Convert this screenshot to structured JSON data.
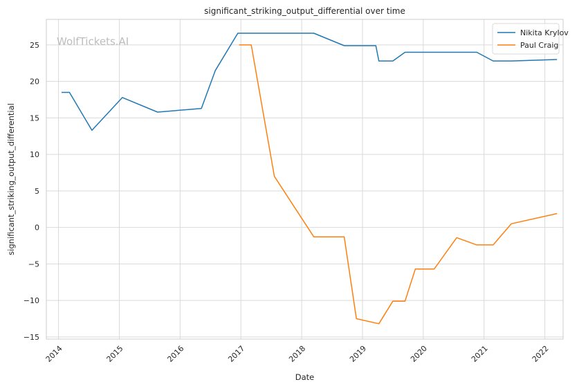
{
  "chart_data": {
    "type": "line",
    "title": "significant_striking_output_differential over time",
    "xlabel": "Date",
    "ylabel": "significant_striking_output_differential",
    "watermark": "WolfTickets.AI",
    "xlim": [
      2013.8,
      2022.3
    ],
    "ylim": [
      -15.3,
      28.5
    ],
    "x_ticks": [
      2014,
      2015,
      2016,
      2017,
      2018,
      2019,
      2020,
      2021,
      2022
    ],
    "y_ticks": [
      -15,
      -10,
      -5,
      0,
      5,
      10,
      15,
      20,
      25
    ],
    "grid": true,
    "legend_position": "top-right",
    "series": [
      {
        "name": "Nikita Krylov",
        "color": "#1f77b4",
        "points": [
          [
            2014.05,
            18.5
          ],
          [
            2014.18,
            18.5
          ],
          [
            2014.55,
            13.3
          ],
          [
            2015.05,
            17.8
          ],
          [
            2015.63,
            15.8
          ],
          [
            2016.35,
            16.3
          ],
          [
            2016.58,
            21.5
          ],
          [
            2016.95,
            26.6
          ],
          [
            2018.2,
            26.6
          ],
          [
            2018.7,
            24.9
          ],
          [
            2019.22,
            24.9
          ],
          [
            2019.27,
            22.8
          ],
          [
            2019.5,
            22.8
          ],
          [
            2019.7,
            24.0
          ],
          [
            2020.88,
            24.0
          ],
          [
            2021.15,
            22.8
          ],
          [
            2021.45,
            22.8
          ],
          [
            2022.2,
            23.0
          ]
        ]
      },
      {
        "name": "Paul Craig",
        "color": "#ff7f0e",
        "points": [
          [
            2016.97,
            25.0
          ],
          [
            2017.17,
            25.0
          ],
          [
            2017.55,
            7.0
          ],
          [
            2018.2,
            -1.3
          ],
          [
            2018.7,
            -1.3
          ],
          [
            2018.9,
            -12.5
          ],
          [
            2019.27,
            -13.2
          ],
          [
            2019.5,
            -10.1
          ],
          [
            2019.7,
            -10.1
          ],
          [
            2019.87,
            -5.7
          ],
          [
            2020.18,
            -5.7
          ],
          [
            2020.55,
            -1.4
          ],
          [
            2020.88,
            -2.4
          ],
          [
            2021.15,
            -2.4
          ],
          [
            2021.45,
            0.5
          ],
          [
            2022.2,
            1.9
          ]
        ]
      }
    ]
  }
}
